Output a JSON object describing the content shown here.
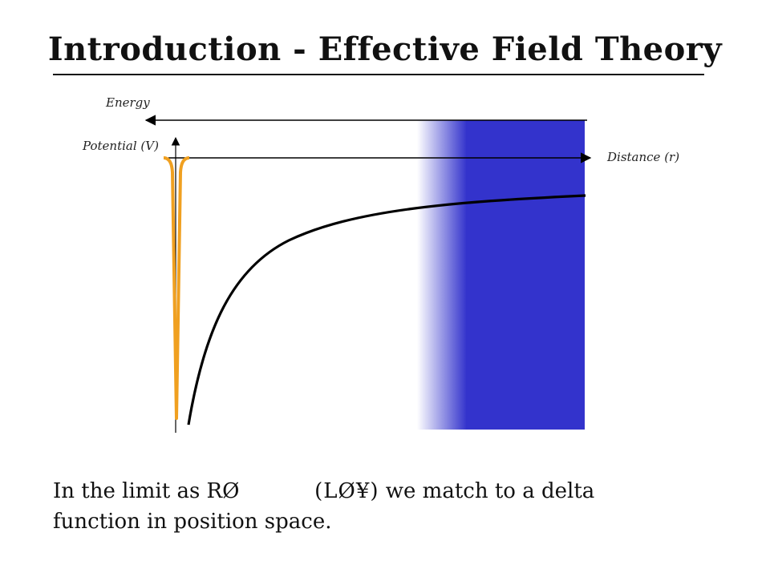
{
  "title": "Introduction - Effective Field Theory",
  "diagram": {
    "labels": {
      "energy": "Energy",
      "potential": "Potential (V)",
      "distance": "Distance (r)"
    },
    "colors": {
      "cutoff_region": "#3333cc",
      "delta_potential": "#f0a020",
      "coulomb_curve": "#000000",
      "axes": "#000000"
    }
  },
  "caption": {
    "part1": "In the limit as R",
    "glyphs1": "Ø          ",
    "glyphs2": "(LØ¥)",
    "part2": " we match to a delta",
    "line2": "function in position space."
  }
}
